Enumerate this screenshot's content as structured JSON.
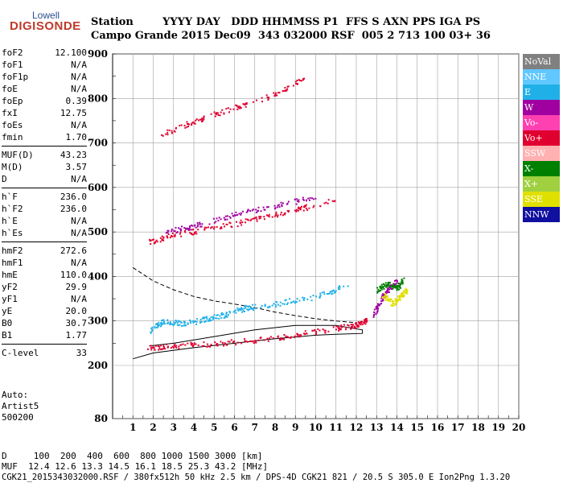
{
  "logo": {
    "line1": "Lowell",
    "line2": "DIGISONDE"
  },
  "header": {
    "line1": "Station        YYYY DAY   DDD HHMMSS P1  FFS S AXN PPS IGA PS",
    "line2": "Campo Grande 2015 Dec09  343 032000 RSF  005 2 713 100 03+ 36"
  },
  "params": [
    [
      {
        "k": "foF2",
        "v": "12.100"
      },
      {
        "k": "foF1",
        "v": "N/A"
      },
      {
        "k": "foF1p",
        "v": "N/A"
      },
      {
        "k": "foE",
        "v": "N/A"
      },
      {
        "k": "foEp",
        "v": "0.39"
      },
      {
        "k": "fxI",
        "v": "12.75"
      },
      {
        "k": "foEs",
        "v": "N/A"
      },
      {
        "k": "fmin",
        "v": "1.70"
      }
    ],
    [
      {
        "k": "MUF(D)",
        "v": "43.23"
      },
      {
        "k": "M(D)",
        "v": "3.57"
      },
      {
        "k": "D",
        "v": "N/A"
      }
    ],
    [
      {
        "k": "h`F",
        "v": "236.0"
      },
      {
        "k": "h`F2",
        "v": "236.0"
      },
      {
        "k": "h`E",
        "v": "N/A"
      },
      {
        "k": "h`Es",
        "v": "N/A"
      }
    ],
    [
      {
        "k": "hmF2",
        "v": "272.6"
      },
      {
        "k": "hmF1",
        "v": "N/A"
      },
      {
        "k": "hmE",
        "v": "110.0"
      },
      {
        "k": "yF2",
        "v": "29.9"
      },
      {
        "k": "yF1",
        "v": "N/A"
      },
      {
        "k": "yE",
        "v": "20.0"
      },
      {
        "k": "B0",
        "v": "30.7"
      },
      {
        "k": "B1",
        "v": "1.77"
      }
    ],
    [
      {
        "k": "C-level",
        "v": "33"
      }
    ]
  ],
  "auto": {
    "line1": "Auto:",
    "line2": "Artist5",
    "line3": "500200"
  },
  "legend": [
    {
      "label": "NoVal",
      "color": "#808080"
    },
    {
      "label": "NNE",
      "color": "#60c8ff"
    },
    {
      "label": "E",
      "color": "#20b0e8"
    },
    {
      "label": "W",
      "color": "#a000a0"
    },
    {
      "label": "Vo-",
      "color": "#ff40b0"
    },
    {
      "label": "Vo+",
      "color": "#e00030"
    },
    {
      "label": "SSW",
      "color": "#ffb0b0"
    },
    {
      "label": "X-",
      "color": "#008000"
    },
    {
      "label": "X+",
      "color": "#a0d040"
    },
    {
      "label": "SSE",
      "color": "#e0e000"
    },
    {
      "label": "NNW",
      "color": "#1010a0"
    }
  ],
  "footer": {
    "line1": "D     100  200  400  600  800 1000 1500 3000 [km]",
    "line2": "MUF  12.4 12.6 13.3 14.5 16.1 18.5 25.3 43.2 [MHz]",
    "line3": "CGK21_2015343032000.RSF / 380fx512h 50 kHz 2.5 km / DPS-4D CGK21 821 / 20.5 S 305.0 E Ion2Png 1.3.20"
  },
  "chart_data": {
    "type": "scatter",
    "x_ticks": [
      "1",
      "2",
      "3",
      "4",
      "5",
      "6",
      "7",
      "8",
      "9",
      "10",
      "11",
      "12",
      "13",
      "14",
      "15",
      "16",
      "17",
      "18",
      "19",
      "20"
    ],
    "y_ticks": [
      "80",
      "200",
      "300",
      "400",
      "500",
      "600",
      "700",
      "800",
      "900"
    ],
    "xlim": [
      1,
      20
    ],
    "y_scale": "ionogram (80 to 200 compressed)",
    "grid": true,
    "series": [
      {
        "color": "#e00030",
        "points": [
          [
            1.7,
            240
          ],
          [
            3,
            245
          ],
          [
            5,
            250
          ],
          [
            7,
            258
          ],
          [
            9,
            270
          ],
          [
            11,
            285
          ],
          [
            12,
            292
          ],
          [
            12.5,
            305
          ]
        ]
      },
      {
        "color": "#20b0e8",
        "points": [
          [
            1.8,
            280
          ],
          [
            2.5,
            300
          ],
          [
            3.5,
            295
          ],
          [
            4.5,
            305
          ],
          [
            5.5,
            315
          ],
          [
            6.5,
            330
          ],
          [
            8,
            340
          ],
          [
            10,
            355
          ],
          [
            11.5,
            380
          ]
        ]
      },
      {
        "color": "#e00030",
        "points": [
          [
            1.8,
            478
          ],
          [
            3,
            495
          ],
          [
            5,
            510
          ],
          [
            7,
            530
          ],
          [
            9,
            550
          ],
          [
            11,
            575
          ]
        ]
      },
      {
        "color": "#a000a0",
        "points": [
          [
            2.5,
            500
          ],
          [
            4,
            515
          ],
          [
            6,
            540
          ],
          [
            8,
            560
          ],
          [
            10,
            580
          ]
        ]
      },
      {
        "color": "#e00030",
        "points": [
          [
            2.4,
            720
          ],
          [
            4,
            750
          ],
          [
            6,
            780
          ],
          [
            8,
            810
          ],
          [
            9.5,
            850
          ]
        ]
      },
      {
        "color": "#a000a0",
        "points": [
          [
            12.8,
            310
          ],
          [
            13.2,
            350
          ],
          [
            13.6,
            375
          ],
          [
            14,
            390
          ]
        ]
      },
      {
        "color": "#e0e000",
        "points": [
          [
            13.3,
            360
          ],
          [
            13.8,
            340
          ],
          [
            14.2,
            360
          ],
          [
            14.5,
            370
          ]
        ]
      },
      {
        "color": "#008000",
        "points": [
          [
            13,
            370
          ],
          [
            13.5,
            385
          ],
          [
            14,
            375
          ],
          [
            14.3,
            395
          ]
        ]
      }
    ],
    "profiles": [
      {
        "style": "solid",
        "points": [
          [
            1,
            215
          ],
          [
            2,
            228
          ],
          [
            4,
            240
          ],
          [
            6,
            250
          ],
          [
            8,
            260
          ],
          [
            10,
            268
          ],
          [
            11,
            270
          ],
          [
            12.3,
            272
          ],
          [
            12.3,
            280
          ],
          [
            11,
            290
          ],
          [
            9,
            290
          ],
          [
            7,
            280
          ],
          [
            5,
            265
          ],
          [
            3,
            250
          ],
          [
            1.8,
            244
          ]
        ]
      },
      {
        "style": "dashed",
        "points": [
          [
            1,
            420
          ],
          [
            2,
            390
          ],
          [
            3,
            370
          ],
          [
            4,
            355
          ],
          [
            5,
            345
          ],
          [
            6,
            338
          ],
          [
            7,
            330
          ],
          [
            8,
            320
          ],
          [
            9,
            312
          ],
          [
            10,
            305
          ],
          [
            11,
            300
          ],
          [
            12,
            296
          ]
        ]
      }
    ]
  }
}
